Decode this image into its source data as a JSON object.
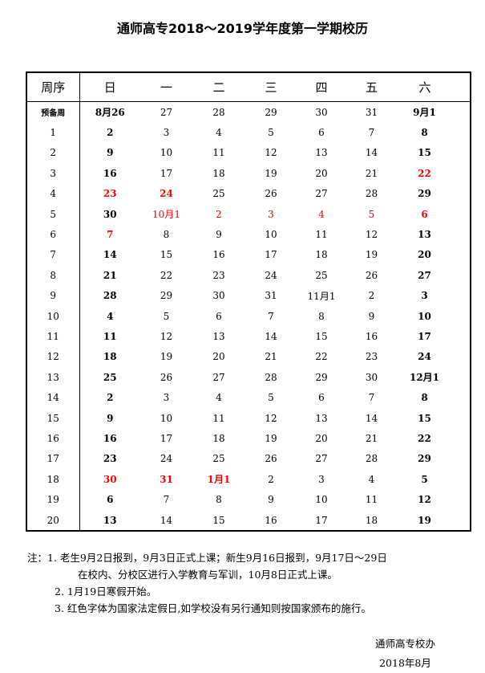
{
  "title": "通师高专2018～2019学年度第一学期校历",
  "header": [
    "周序",
    "日",
    "一",
    "二",
    "三",
    "四",
    "五",
    "六"
  ],
  "colors": {
    "holiday": "#ff0000",
    "text": "#000000"
  },
  "rows": [
    {
      "week": "预备周",
      "cells": [
        {
          "v": "8月26"
        },
        {
          "v": "27"
        },
        {
          "v": "28"
        },
        {
          "v": "29"
        },
        {
          "v": "30"
        },
        {
          "v": "31"
        },
        {
          "v": "9月1"
        }
      ]
    },
    {
      "week": "1",
      "cells": [
        {
          "v": "2"
        },
        {
          "v": "3"
        },
        {
          "v": "4"
        },
        {
          "v": "5"
        },
        {
          "v": "6"
        },
        {
          "v": "7"
        },
        {
          "v": "8"
        }
      ]
    },
    {
      "week": "2",
      "cells": [
        {
          "v": "9"
        },
        {
          "v": "10"
        },
        {
          "v": "11"
        },
        {
          "v": "12"
        },
        {
          "v": "13"
        },
        {
          "v": "14"
        },
        {
          "v": "15"
        }
      ]
    },
    {
      "week": "3",
      "cells": [
        {
          "v": "16"
        },
        {
          "v": "17"
        },
        {
          "v": "18"
        },
        {
          "v": "19"
        },
        {
          "v": "20"
        },
        {
          "v": "21"
        },
        {
          "v": "22",
          "red": true
        }
      ]
    },
    {
      "week": "4",
      "cells": [
        {
          "v": "23",
          "red": true
        },
        {
          "v": "24",
          "red": true,
          "bold": true
        },
        {
          "v": "25"
        },
        {
          "v": "26"
        },
        {
          "v": "27"
        },
        {
          "v": "28"
        },
        {
          "v": "29"
        }
      ]
    },
    {
      "week": "5",
      "cells": [
        {
          "v": "30"
        },
        {
          "v": "10月1",
          "red": true
        },
        {
          "v": "2",
          "red": true
        },
        {
          "v": "3",
          "red": true
        },
        {
          "v": "4",
          "red": true
        },
        {
          "v": "5",
          "red": true
        },
        {
          "v": "6",
          "red": true
        }
      ]
    },
    {
      "week": "6",
      "cells": [
        {
          "v": "7",
          "red": true
        },
        {
          "v": "8"
        },
        {
          "v": "9"
        },
        {
          "v": "10"
        },
        {
          "v": "11"
        },
        {
          "v": "12"
        },
        {
          "v": "13"
        }
      ]
    },
    {
      "week": "7",
      "cells": [
        {
          "v": "14"
        },
        {
          "v": "15"
        },
        {
          "v": "16"
        },
        {
          "v": "17"
        },
        {
          "v": "18"
        },
        {
          "v": "19"
        },
        {
          "v": "20"
        }
      ]
    },
    {
      "week": "8",
      "cells": [
        {
          "v": "21"
        },
        {
          "v": "22"
        },
        {
          "v": "23"
        },
        {
          "v": "24"
        },
        {
          "v": "25"
        },
        {
          "v": "26"
        },
        {
          "v": "27"
        }
      ]
    },
    {
      "week": "9",
      "cells": [
        {
          "v": "28"
        },
        {
          "v": "29"
        },
        {
          "v": "30"
        },
        {
          "v": "31"
        },
        {
          "v": "11月1"
        },
        {
          "v": "2"
        },
        {
          "v": "3"
        }
      ]
    },
    {
      "week": "10",
      "cells": [
        {
          "v": "4"
        },
        {
          "v": "5"
        },
        {
          "v": "6"
        },
        {
          "v": "7"
        },
        {
          "v": "8"
        },
        {
          "v": "9"
        },
        {
          "v": "10"
        }
      ]
    },
    {
      "week": "11",
      "cells": [
        {
          "v": "11"
        },
        {
          "v": "12"
        },
        {
          "v": "13"
        },
        {
          "v": "14"
        },
        {
          "v": "15"
        },
        {
          "v": "16"
        },
        {
          "v": "17"
        }
      ]
    },
    {
      "week": "12",
      "cells": [
        {
          "v": "18"
        },
        {
          "v": "19"
        },
        {
          "v": "20"
        },
        {
          "v": "21"
        },
        {
          "v": "22"
        },
        {
          "v": "23"
        },
        {
          "v": "24"
        }
      ]
    },
    {
      "week": "13",
      "cells": [
        {
          "v": "25"
        },
        {
          "v": "26"
        },
        {
          "v": "27"
        },
        {
          "v": "28"
        },
        {
          "v": "29"
        },
        {
          "v": "30"
        },
        {
          "v": "12月1"
        }
      ]
    },
    {
      "week": "14",
      "cells": [
        {
          "v": "2"
        },
        {
          "v": "3"
        },
        {
          "v": "4"
        },
        {
          "v": "5"
        },
        {
          "v": "6"
        },
        {
          "v": "7"
        },
        {
          "v": "8"
        }
      ]
    },
    {
      "week": "15",
      "cells": [
        {
          "v": "9"
        },
        {
          "v": "10"
        },
        {
          "v": "11"
        },
        {
          "v": "12"
        },
        {
          "v": "13"
        },
        {
          "v": "14"
        },
        {
          "v": "15"
        }
      ]
    },
    {
      "week": "16",
      "cells": [
        {
          "v": "16"
        },
        {
          "v": "17"
        },
        {
          "v": "18"
        },
        {
          "v": "19"
        },
        {
          "v": "20"
        },
        {
          "v": "21"
        },
        {
          "v": "22"
        }
      ]
    },
    {
      "week": "17",
      "cells": [
        {
          "v": "23"
        },
        {
          "v": "24"
        },
        {
          "v": "25"
        },
        {
          "v": "26"
        },
        {
          "v": "27"
        },
        {
          "v": "28"
        },
        {
          "v": "29"
        }
      ]
    },
    {
      "week": "18",
      "cells": [
        {
          "v": "30",
          "red": true
        },
        {
          "v": "31",
          "red": true,
          "bold": true
        },
        {
          "v": "1月1",
          "red": true,
          "bold": true
        },
        {
          "v": "2"
        },
        {
          "v": "3"
        },
        {
          "v": "4"
        },
        {
          "v": "5"
        }
      ]
    },
    {
      "week": "19",
      "cells": [
        {
          "v": "6"
        },
        {
          "v": "7"
        },
        {
          "v": "8"
        },
        {
          "v": "9"
        },
        {
          "v": "10"
        },
        {
          "v": "11"
        },
        {
          "v": "12"
        }
      ]
    },
    {
      "week": "20",
      "cells": [
        {
          "v": "13"
        },
        {
          "v": "14"
        },
        {
          "v": "15"
        },
        {
          "v": "16"
        },
        {
          "v": "17"
        },
        {
          "v": "18"
        },
        {
          "v": "19"
        }
      ]
    }
  ],
  "notes": [
    "注：1. 老生9月2日报到，9月3日正式上课；新生9月16日报到，9月17日～29日",
    "在校内、分校区进行入学教育与军训，10月8日正式上课。",
    "2. 1月19日寒假开始。",
    "3.  红色字体为国家法定假日,如学校没有另行通知则按国家颁布的施行。"
  ],
  "signature": {
    "office": "通师高专校办",
    "date": "2018年8月"
  }
}
